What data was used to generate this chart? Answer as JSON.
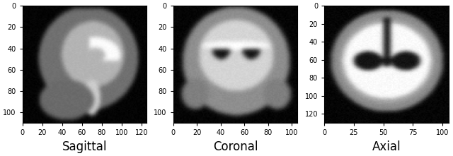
{
  "panels": [
    {
      "label": "Sagittal",
      "xlim": [
        0,
        125
      ],
      "ylim": [
        110,
        0
      ],
      "xticks": [
        0,
        20,
        40,
        60,
        80,
        100,
        120
      ],
      "yticks": [
        0,
        20,
        40,
        60,
        80,
        100
      ],
      "slice_axis": 0
    },
    {
      "label": "Coronal",
      "xlim": [
        0,
        105
      ],
      "ylim": [
        110,
        0
      ],
      "xticks": [
        0,
        20,
        40,
        60,
        80,
        100
      ],
      "yticks": [
        0,
        20,
        40,
        60,
        80,
        100
      ],
      "slice_axis": 1
    },
    {
      "label": "Axial",
      "xlim": [
        0,
        105
      ],
      "ylim": [
        130,
        0
      ],
      "xticks": [
        0,
        25,
        50,
        75,
        100
      ],
      "yticks": [
        0,
        20,
        40,
        60,
        80,
        100,
        120
      ],
      "slice_axis": 2
    }
  ],
  "background_color": "black",
  "cmap": "gray",
  "label_fontsize": 12,
  "tick_fontsize": 7,
  "fig_facecolor": "white",
  "tick_color": "black",
  "spine_color": "black"
}
